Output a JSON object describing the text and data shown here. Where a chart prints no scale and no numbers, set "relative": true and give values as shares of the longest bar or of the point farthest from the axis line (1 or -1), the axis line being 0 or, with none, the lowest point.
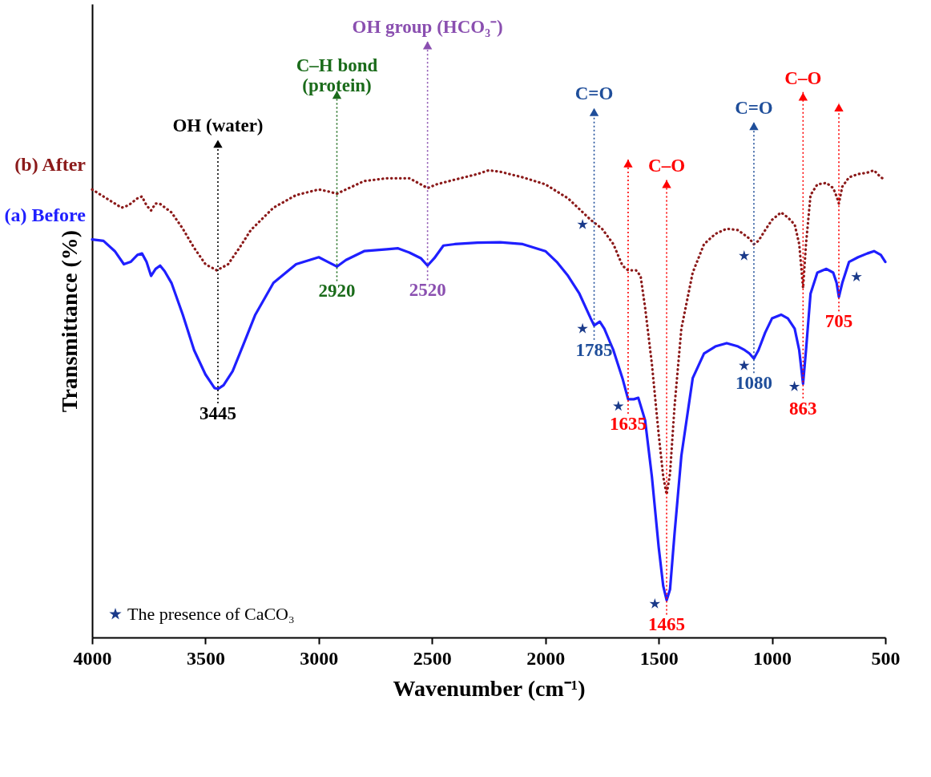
{
  "chart_data": {
    "type": "line",
    "xlabel": "Wavenumber (cm⁻¹)",
    "ylabel": "Transmittance (%)",
    "relative": true,
    "xlim": [
      4000,
      500
    ],
    "xticks": [
      {
        "value": 4000,
        "label": "4000"
      },
      {
        "value": 3500,
        "label": "3500"
      },
      {
        "value": 3000,
        "label": "3000"
      },
      {
        "value": 2500,
        "label": "2500"
      },
      {
        "value": 2000,
        "label": "2000"
      },
      {
        "value": 1500,
        "label": "1500"
      },
      {
        "value": 1000,
        "label": "1000"
      },
      {
        "value": 500,
        "label": "500"
      }
    ],
    "tick_labels": "x",
    "grid": false,
    "legend": "bottom left",
    "series": [
      {
        "name": "(b) After",
        "color": "#8b1a1a",
        "line_style": "dotted",
        "marker": "none",
        "x": [
          4000,
          3950,
          3900,
          3870,
          3840,
          3800,
          3780,
          3760,
          3740,
          3720,
          3700,
          3650,
          3600,
          3550,
          3500,
          3450,
          3400,
          3350,
          3300,
          3200,
          3100,
          3000,
          2960,
          2920,
          2880,
          2800,
          2700,
          2600,
          2550,
          2520,
          2480,
          2400,
          2300,
          2250,
          2200,
          2100,
          2000,
          1900,
          1850,
          1800,
          1750,
          1700,
          1660,
          1635,
          1600,
          1580,
          1560,
          1530,
          1500,
          1480,
          1465,
          1450,
          1430,
          1400,
          1350,
          1300,
          1250,
          1200,
          1150,
          1100,
          1080,
          1060,
          1030,
          1000,
          960,
          930,
          900,
          880,
          863,
          850,
          830,
          800,
          760,
          730,
          715,
          705,
          690,
          660,
          620,
          580,
          550,
          520,
          500
        ],
        "values": [
          0.959,
          0.944,
          0.929,
          0.92,
          0.925,
          0.94,
          0.944,
          0.925,
          0.914,
          0.929,
          0.928,
          0.91,
          0.875,
          0.834,
          0.799,
          0.786,
          0.799,
          0.834,
          0.872,
          0.92,
          0.947,
          0.959,
          0.955,
          0.95,
          0.959,
          0.977,
          0.983,
          0.983,
          0.97,
          0.962,
          0.97,
          0.98,
          0.992,
          1.0,
          0.997,
          0.985,
          0.97,
          0.94,
          0.917,
          0.894,
          0.875,
          0.842,
          0.796,
          0.786,
          0.786,
          0.774,
          0.706,
          0.585,
          0.434,
          0.344,
          0.306,
          0.351,
          0.495,
          0.661,
          0.781,
          0.842,
          0.864,
          0.875,
          0.872,
          0.854,
          0.842,
          0.849,
          0.872,
          0.894,
          0.91,
          0.899,
          0.884,
          0.842,
          0.748,
          0.842,
          0.947,
          0.97,
          0.973,
          0.962,
          0.944,
          0.929,
          0.965,
          0.985,
          0.992,
          0.995,
          1.0,
          0.985,
          0.98
        ]
      },
      {
        "name": "(a) Before",
        "color": "#1f1fff",
        "line_style": "solid",
        "marker": "none",
        "x": [
          4000,
          3950,
          3900,
          3860,
          3830,
          3800,
          3780,
          3760,
          3740,
          3720,
          3700,
          3680,
          3650,
          3600,
          3550,
          3500,
          3460,
          3445,
          3420,
          3380,
          3330,
          3280,
          3200,
          3100,
          3000,
          2960,
          2920,
          2880,
          2800,
          2700,
          2650,
          2600,
          2550,
          2520,
          2490,
          2450,
          2400,
          2300,
          2200,
          2100,
          2000,
          1950,
          1900,
          1850,
          1800,
          1785,
          1760,
          1740,
          1700,
          1660,
          1635,
          1610,
          1590,
          1560,
          1530,
          1500,
          1480,
          1465,
          1450,
          1430,
          1400,
          1350,
          1300,
          1250,
          1200,
          1150,
          1120,
          1100,
          1080,
          1060,
          1030,
          1000,
          960,
          930,
          900,
          880,
          863,
          850,
          830,
          800,
          760,
          730,
          715,
          705,
          690,
          660,
          620,
          580,
          550,
          520,
          500
        ],
        "values": [
          0.852,
          0.849,
          0.827,
          0.799,
          0.804,
          0.819,
          0.822,
          0.804,
          0.774,
          0.789,
          0.796,
          0.784,
          0.759,
          0.691,
          0.615,
          0.563,
          0.534,
          0.532,
          0.54,
          0.57,
          0.63,
          0.691,
          0.759,
          0.799,
          0.814,
          0.804,
          0.794,
          0.808,
          0.827,
          0.831,
          0.833,
          0.824,
          0.812,
          0.796,
          0.812,
          0.839,
          0.842,
          0.845,
          0.846,
          0.842,
          0.827,
          0.804,
          0.774,
          0.736,
          0.683,
          0.668,
          0.676,
          0.661,
          0.615,
          0.555,
          0.51,
          0.51,
          0.513,
          0.465,
          0.344,
          0.193,
          0.11,
          0.08,
          0.103,
          0.223,
          0.389,
          0.555,
          0.608,
          0.623,
          0.63,
          0.623,
          0.615,
          0.608,
          0.597,
          0.615,
          0.653,
          0.683,
          0.691,
          0.683,
          0.661,
          0.615,
          0.543,
          0.615,
          0.736,
          0.781,
          0.789,
          0.781,
          0.759,
          0.729,
          0.759,
          0.804,
          0.814,
          0.822,
          0.827,
          0.819,
          0.804
        ]
      },
      {
        "name": "The presence of CaCO₃",
        "type": "scatter",
        "color": "#1a3a8a",
        "marker": "star",
        "x": [
          1836,
          1836,
          1678,
          1517,
          1123,
          1123,
          901,
          627
        ],
        "values": [
          0.884,
          0.661,
          0.495,
          0.072,
          0.817,
          0.582,
          0.537,
          0.772
        ]
      }
    ],
    "ref_lines": [
      {
        "axis": "x",
        "value": 3445,
        "label": "OH (water)",
        "color": "#000000",
        "line_style": "dotted"
      },
      {
        "axis": "x",
        "value": 2920,
        "label": "C–H bond\n(protein)",
        "color": "#1a6b1a",
        "line_style": "dotted"
      },
      {
        "axis": "x",
        "value": 2520,
        "label": "OH group (HCO₃⁻)",
        "color": "#8a4fb0",
        "line_style": "dotted"
      },
      {
        "axis": "x",
        "value": 1785,
        "label": "C=O",
        "color": "#1f4e9a",
        "line_style": "dotted"
      },
      {
        "axis": "x",
        "value": 1635,
        "color": "#ff0000",
        "line_style": "dotted"
      },
      {
        "axis": "x",
        "value": 1465,
        "label": "C–O",
        "color": "#ff0000",
        "line_style": "dotted"
      },
      {
        "axis": "x",
        "value": 1080,
        "label": "C=O",
        "color": "#1f4e9a",
        "line_style": "dotted"
      },
      {
        "axis": "x",
        "value": 863,
        "label": "C–O",
        "color": "#ff0000",
        "line_style": "dotted"
      },
      {
        "axis": "x",
        "value": 705,
        "color": "#ff0000",
        "line_style": "dotted"
      }
    ],
    "annotations": [
      {
        "text": "3445",
        "x": 3445,
        "y": 0.532
      },
      {
        "text": "2920",
        "x": 2920,
        "y": 0.794
      },
      {
        "text": "2520",
        "x": 2520,
        "y": 0.796
      },
      {
        "text": "1785",
        "x": 1785,
        "y": 0.668
      },
      {
        "text": "1635",
        "x": 1635,
        "y": 0.51
      },
      {
        "text": "1465",
        "x": 1465,
        "y": 0.08
      },
      {
        "text": "1080",
        "x": 1080,
        "y": 0.597
      },
      {
        "text": "863",
        "x": 863,
        "y": 0.543
      },
      {
        "text": "705",
        "x": 705,
        "y": 0.729
      }
    ]
  }
}
